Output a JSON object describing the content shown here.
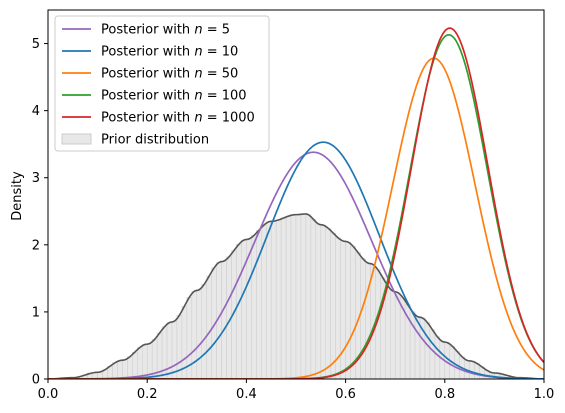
{
  "chart_data": {
    "type": "line",
    "title": "",
    "xlabel": "",
    "ylabel": "Density",
    "xlim": [
      0.0,
      1.0
    ],
    "ylim": [
      0,
      5.5
    ],
    "xticks": [
      "0.0",
      "0.2",
      "0.4",
      "0.6",
      "0.8",
      "1.0"
    ],
    "yticks": [
      "0",
      "1",
      "2",
      "3",
      "4",
      "5"
    ],
    "legend_position": "top-left",
    "grid": false,
    "series": [
      {
        "name": "Posterior with n = 5",
        "legend_prefix": "Posterior with ",
        "legend_var": "n",
        "legend_suffix": " = 5",
        "color": "#9467bd",
        "mean": 0.535,
        "sd": 0.118,
        "peak": 3.38
      },
      {
        "name": "Posterior with n = 10",
        "legend_prefix": "Posterior with ",
        "legend_var": "n",
        "legend_suffix": " = 10",
        "color": "#1f77b4",
        "mean": 0.555,
        "sd": 0.113,
        "peak": 3.53
      },
      {
        "name": "Posterior with n = 50",
        "legend_prefix": "Posterior with ",
        "legend_var": "n",
        "legend_suffix": " = 50",
        "color": "#ff7f0e",
        "mean": 0.778,
        "sd": 0.083,
        "peak": 4.78
      },
      {
        "name": "Posterior with n = 100",
        "legend_prefix": "Posterior with ",
        "legend_var": "n",
        "legend_suffix": " = 100",
        "color": "#2ca02c",
        "mean": 0.808,
        "sd": 0.078,
        "peak": 5.13
      },
      {
        "name": "Posterior with n = 1000",
        "legend_prefix": "Posterior with ",
        "legend_var": "n",
        "legend_suffix": " = 1000",
        "color": "#d62728",
        "mean": 0.81,
        "sd": 0.077,
        "peak": 5.23
      }
    ],
    "prior": {
      "name": "Prior distribution",
      "fill_color": "#e8e8e8",
      "line_color": "#555555",
      "bin_edge_color": "#cccccc",
      "bin_width": 0.01,
      "density": [
        [
          0.0,
          0.0
        ],
        [
          0.05,
          0.02
        ],
        [
          0.1,
          0.1
        ],
        [
          0.15,
          0.28
        ],
        [
          0.2,
          0.52
        ],
        [
          0.25,
          0.85
        ],
        [
          0.3,
          1.32
        ],
        [
          0.35,
          1.75
        ],
        [
          0.4,
          2.08
        ],
        [
          0.45,
          2.35
        ],
        [
          0.5,
          2.45
        ],
        [
          0.52,
          2.46
        ],
        [
          0.55,
          2.3
        ],
        [
          0.6,
          2.05
        ],
        [
          0.65,
          1.72
        ],
        [
          0.7,
          1.3
        ],
        [
          0.75,
          0.92
        ],
        [
          0.8,
          0.55
        ],
        [
          0.85,
          0.27
        ],
        [
          0.9,
          0.09
        ],
        [
          0.95,
          0.02
        ],
        [
          1.0,
          0.0
        ]
      ]
    }
  }
}
